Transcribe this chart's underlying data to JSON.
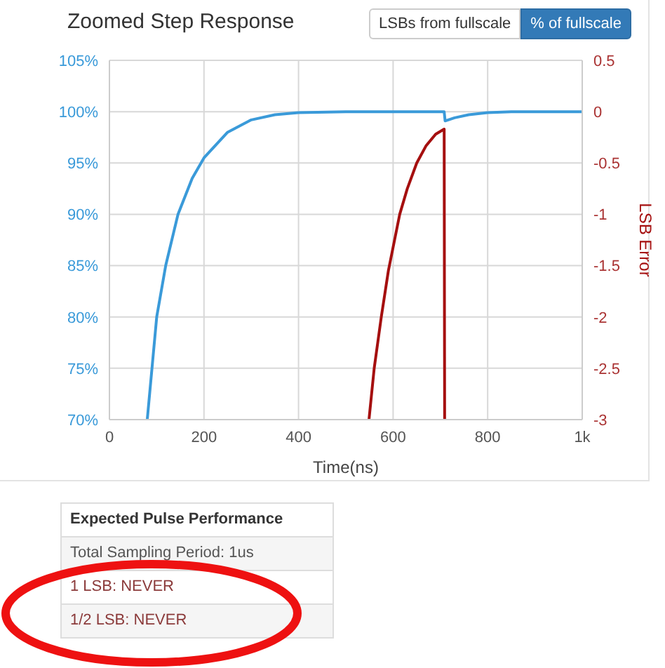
{
  "chart_data": {
    "type": "line",
    "title": "Zoomed Step Response",
    "xlabel": "Time(ns)",
    "y2label": "LSB Error",
    "annotations": [
      "LSBs from fullscale",
      "% of fullscale",
      "Expected Pulse Performance",
      "Total Sampling Period: 1us",
      "1 LSB: NEVER",
      "1/2 LSB: NEVER"
    ],
    "series": [
      {
        "color": "#3a9ad9",
        "x": [
          80,
          100,
          119,
          145,
          175,
          200,
          250,
          300,
          350,
          400,
          500,
          708,
          710,
          730,
          760,
          800,
          850,
          1000
        ],
        "values": [
          70,
          80,
          85,
          90,
          93.5,
          95.5,
          98,
          99.2,
          99.7,
          99.9,
          100,
          100,
          99.1,
          99.4,
          99.7,
          99.9,
          100,
          100
        ]
      },
      {
        "color": "#a50f0f",
        "axis": "y2",
        "x": [
          549,
          560,
          575,
          590,
          614,
          630,
          650,
          670,
          690,
          708,
          709
        ],
        "values": [
          -3,
          -2.5,
          -2,
          -1.55,
          -1,
          -0.75,
          -0.5,
          -0.33,
          -0.22,
          -0.17,
          -3
        ]
      }
    ],
    "xlim": [
      0,
      1000
    ],
    "xticks": [
      0,
      200,
      400,
      600,
      800,
      {
        "value": 1000,
        "label": "1k"
      }
    ],
    "ylim": [
      70,
      105
    ],
    "yticks": [
      {
        "value": 70,
        "label": "70%"
      },
      {
        "value": 75,
        "label": "75%"
      },
      {
        "value": 80,
        "label": "80%"
      },
      {
        "value": 85,
        "label": "85%"
      },
      {
        "value": 90,
        "label": "90%"
      },
      {
        "value": 95,
        "label": "95%"
      },
      {
        "value": 100,
        "label": "100%"
      },
      {
        "value": 105,
        "label": "105%"
      }
    ],
    "y2lim": [
      -3,
      0.5
    ],
    "y2ticks": [
      -3,
      -2.5,
      -2,
      -1.5,
      -1,
      -0.5,
      0,
      0.5
    ],
    "grid": true,
    "legend": false,
    "marker": "none",
    "line_style": "solid"
  }
}
